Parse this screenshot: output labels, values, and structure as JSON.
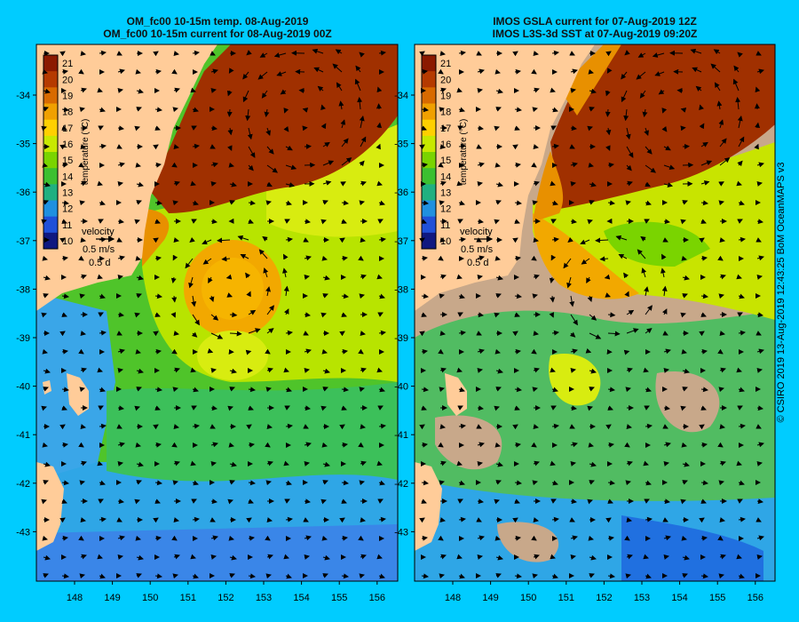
{
  "panels": [
    {
      "title_line1": "OM_fc00 10-15m temp. 08-Aug-2019",
      "title_line2": "OM_fc00 10-15m current for 08-Aug-2019 00Z",
      "colorbar_label": "temperature (°C)",
      "velocity_title": "velocity",
      "velocity_scale": "0.5 m/s",
      "velocity_time": "0.5 d"
    },
    {
      "title_line1": "IMOS GSLA current for 07-Aug-2019 12Z",
      "title_line2": "IMOS L3S-3d SST at 07-Aug-2019 09:20Z",
      "colorbar_label": "temperature (°C)",
      "velocity_title": "velocity",
      "velocity_scale": "0.5 m/s",
      "velocity_time": "0.5 d"
    }
  ],
  "colorbar_ticks": [
    "21",
    "20",
    "19",
    "18",
    "17",
    "16",
    "15",
    "14",
    "13",
    "12",
    "11",
    "10"
  ],
  "colorbar_colors": [
    "#8b1a00",
    "#b53a00",
    "#d86a00",
    "#f0a000",
    "#ffd000",
    "#c8e800",
    "#7ad400",
    "#3cc030",
    "#20b080",
    "#2090e0",
    "#2050d8",
    "#101880"
  ],
  "lat_labels": [
    "-34",
    "-35",
    "-36",
    "-37",
    "-38",
    "-39",
    "-40",
    "-41",
    "-42",
    "-43"
  ],
  "lon_labels": [
    "148",
    "149",
    "150",
    "151",
    "152",
    "153",
    "154",
    "155",
    "156"
  ],
  "credit": "© CSIRO 2019   13-Aug-2019 12:43:25 BoM OceanMAPS v3",
  "colors": {
    "background": "#00ccff",
    "land": "#ffcc99",
    "missing": "#c8a88a"
  }
}
